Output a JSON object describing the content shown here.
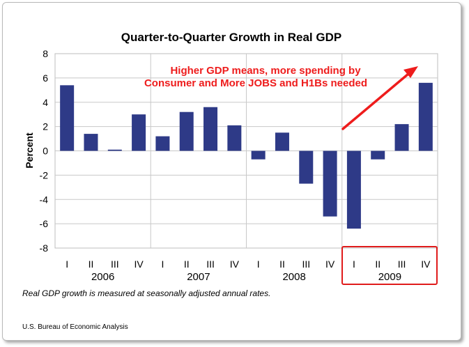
{
  "chart_data": {
    "type": "bar",
    "title": "Quarter-to-Quarter Growth in Real GDP",
    "ylabel": "Percent",
    "xlabel": "",
    "ylim": [
      -8,
      8
    ],
    "yticks": [
      "8",
      "6",
      "4",
      "2",
      "0",
      "-2",
      "-4",
      "-6",
      "-8"
    ],
    "ytick_values": [
      8,
      6,
      4,
      2,
      0,
      -2,
      -4,
      -6,
      -8
    ],
    "grid": true,
    "years": [
      "2006",
      "2007",
      "2008",
      "2009"
    ],
    "quarter_labels": [
      "I",
      "II",
      "III",
      "IV"
    ],
    "categories": [
      "2006 I",
      "2006 II",
      "2006 III",
      "2006 IV",
      "2007 I",
      "2007 II",
      "2007 III",
      "2007 IV",
      "2008 I",
      "2008 II",
      "2008 III",
      "2008 IV",
      "2009 I",
      "2009 II",
      "2009 III",
      "2009 IV"
    ],
    "values": [
      5.4,
      1.4,
      0.1,
      3.0,
      1.2,
      3.2,
      3.6,
      2.1,
      -0.7,
      1.5,
      -2.7,
      -5.4,
      -6.4,
      -0.7,
      2.2,
      5.6
    ],
    "bar_color": "#2e3a87",
    "annotation": [
      "Higher GDP means, more spending by",
      "Consumer and More JOBS and H1Bs needed"
    ],
    "annotation_color": "#ee1c1c",
    "highlight_year": "2009",
    "footnote": "Real GDP growth is measured at seasonally adjusted annual rates.",
    "source": "U.S. Bureau of Economic Analysis"
  }
}
